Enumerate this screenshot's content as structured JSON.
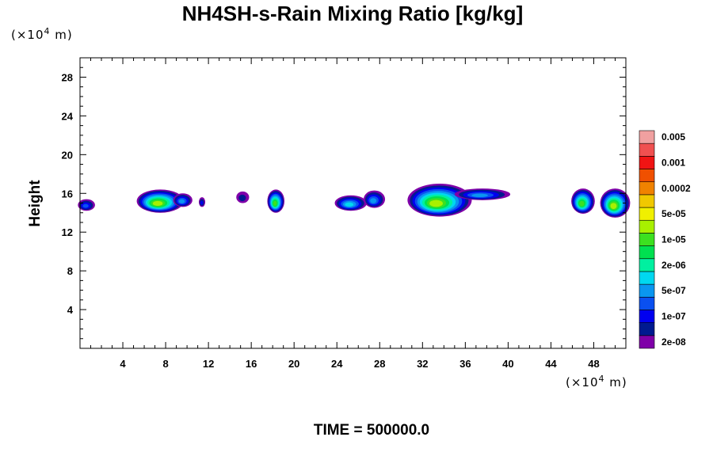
{
  "chart_data": {
    "type": "heatmap",
    "title": "NH4SH-s-Rain Mixing Ratio [kg/kg]",
    "ylabel": "Height",
    "x_unit_prefix": "(×10",
    "x_unit_exp": "4",
    "x_unit_suffix": " m)",
    "y_unit_prefix": "(×10",
    "y_unit_exp": "4",
    "y_unit_suffix": " m)",
    "xlim": [
      0,
      51
    ],
    "ylim": [
      0,
      30
    ],
    "x_ticks": [
      4,
      8,
      12,
      16,
      20,
      24,
      28,
      32,
      36,
      40,
      44,
      48
    ],
    "y_ticks": [
      4,
      8,
      12,
      16,
      20,
      24,
      28
    ],
    "time_label": "TIME = 500000.0",
    "colorbar": {
      "colors": [
        "#7f00a8",
        "#001a90",
        "#0000f0",
        "#0a50f0",
        "#0a96f0",
        "#00d8f0",
        "#00f0a0",
        "#00e050",
        "#3ce020",
        "#a8f000",
        "#f0f000",
        "#f0c800",
        "#f08200",
        "#f05000",
        "#f01414",
        "#f05050",
        "#f0a0a0"
      ],
      "labels": [
        "2e-08",
        "1e-07",
        "5e-07",
        "2e-06",
        "1e-05",
        "5e-05",
        "0.0002",
        "0.001",
        "0.005"
      ]
    },
    "clouds": [
      {
        "x": 0.6,
        "y": 14.8,
        "rx": 0.8,
        "ry": 0.6,
        "peak": 3
      },
      {
        "x": 7.5,
        "y": 15.2,
        "rx": 2.2,
        "ry": 1.2,
        "peak": 9
      },
      {
        "x": 9.6,
        "y": 15.3,
        "rx": 0.9,
        "ry": 0.7,
        "peak": 4
      },
      {
        "x": 11.4,
        "y": 15.1,
        "rx": 0.3,
        "ry": 0.5,
        "peak": 2
      },
      {
        "x": 15.2,
        "y": 15.6,
        "rx": 0.6,
        "ry": 0.6,
        "peak": 1
      },
      {
        "x": 18.3,
        "y": 15.2,
        "rx": 0.8,
        "ry": 1.2,
        "peak": 8
      },
      {
        "x": 25.3,
        "y": 15.0,
        "rx": 1.5,
        "ry": 0.8,
        "peak": 5
      },
      {
        "x": 27.5,
        "y": 15.4,
        "rx": 1.0,
        "ry": 0.9,
        "peak": 4
      },
      {
        "x": 33.6,
        "y": 15.3,
        "rx": 3.0,
        "ry": 1.7,
        "peak": 9
      },
      {
        "x": 37.6,
        "y": 15.9,
        "rx": 2.6,
        "ry": 0.6,
        "peak": 4
      },
      {
        "x": 47.0,
        "y": 15.2,
        "rx": 1.1,
        "ry": 1.3,
        "peak": 8
      },
      {
        "x": 50.0,
        "y": 15.0,
        "rx": 1.4,
        "ry": 1.5,
        "peak": 9
      }
    ]
  }
}
